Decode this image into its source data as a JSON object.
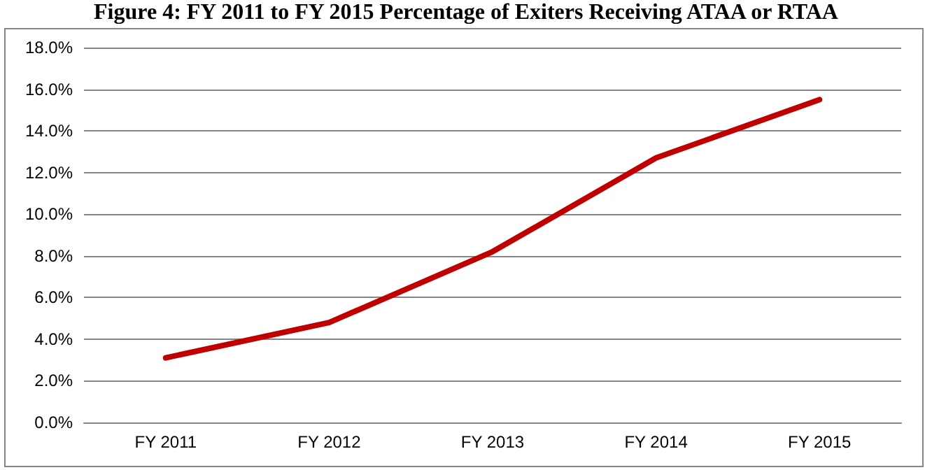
{
  "chart_data": {
    "type": "line",
    "title": "Figure 4: FY 2011 to FY 2015 Percentage of Exiters Receiving ATAA or RTAA",
    "categories": [
      "FY 2011",
      "FY 2012",
      "FY 2013",
      "FY 2014",
      "FY 2015"
    ],
    "series": [
      {
        "color": "#c00000",
        "values": [
          3.1,
          4.8,
          8.2,
          12.7,
          15.5
        ]
      }
    ],
    "ylim": [
      0,
      18
    ],
    "yticks": [
      {
        "value": 0,
        "label": "0.0%"
      },
      {
        "value": 2,
        "label": "2.0%"
      },
      {
        "value": 4,
        "label": "4.0%"
      },
      {
        "value": 6,
        "label": "6.0%"
      },
      {
        "value": 8,
        "label": "8.0%"
      },
      {
        "value": 10,
        "label": "10.0%"
      },
      {
        "value": 12,
        "label": "12.0%"
      },
      {
        "value": 14,
        "label": "14.0%"
      },
      {
        "value": 16,
        "label": "16.0%"
      },
      {
        "value": 18,
        "label": "18.0%"
      }
    ],
    "grid": "y",
    "marker": "none",
    "line_style": "solid"
  }
}
